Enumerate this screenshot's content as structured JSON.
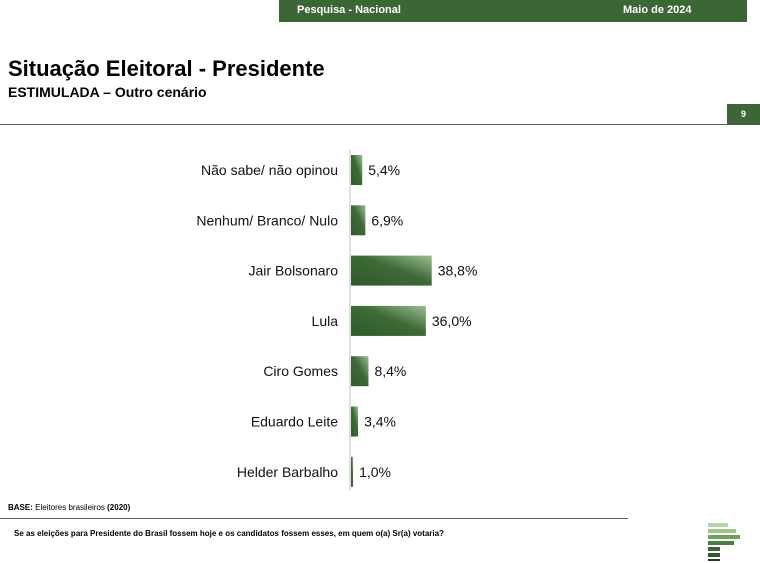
{
  "header": {
    "survey": "Pesquisa - Nacional",
    "date": "Maio de 2024",
    "page_number": "9"
  },
  "title": "Situação Eleitoral - Presidente",
  "subtitle": "ESTIMULADA – Outro cenário",
  "footer": {
    "base_label": "BASE:",
    "base_text": " Eleitores brasileiros ",
    "base_year": "(2020)",
    "question": "Se as eleições para Presidente do Brasil fossem hoje e os candidatos fossem esses, em quem o(a) Sr(a) votaria?"
  },
  "colors": {
    "bar_dark": "#2f5a2a",
    "bar_light": "#8fb386",
    "accent": "#3d6636"
  },
  "chart_data": {
    "type": "bar",
    "orientation": "horizontal",
    "categories": [
      "Não sabe/ não opinou",
      "Nenhum/ Branco/ Nulo",
      "Jair Bolsonaro",
      "Lula",
      "Ciro Gomes",
      "Eduardo Leite",
      "Helder Barbalho"
    ],
    "values": [
      5.4,
      6.9,
      38.8,
      36.0,
      8.4,
      3.4,
      1.0
    ],
    "value_labels": [
      "5,4%",
      "6,9%",
      "38,8%",
      "36,0%",
      "8,4%",
      "3,4%",
      "1,0%"
    ],
    "unit": "%"
  }
}
